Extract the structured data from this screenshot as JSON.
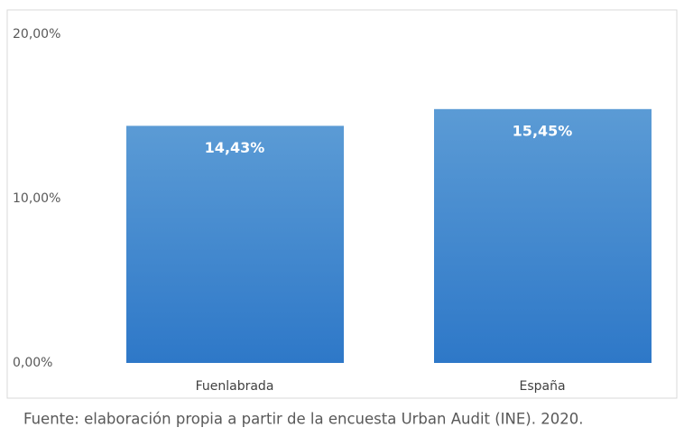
{
  "chart_data": {
    "type": "bar",
    "source": "Fuente: elaboración propia a partir de la encuesta Urban Audit (INE). 2020.",
    "categories": [
      "Fuenlabrada",
      "España"
    ],
    "values": [
      14.43,
      15.45
    ],
    "value_labels": [
      "14,43%",
      "15,45%"
    ],
    "color": "#4a8fd6",
    "ylim": [
      0,
      20
    ],
    "yticks": [
      {
        "value": 0,
        "label": "0,00%"
      },
      {
        "value": 10,
        "label": "10,00%"
      },
      {
        "value": 20,
        "label": "20,00%"
      }
    ],
    "grid": false
  }
}
